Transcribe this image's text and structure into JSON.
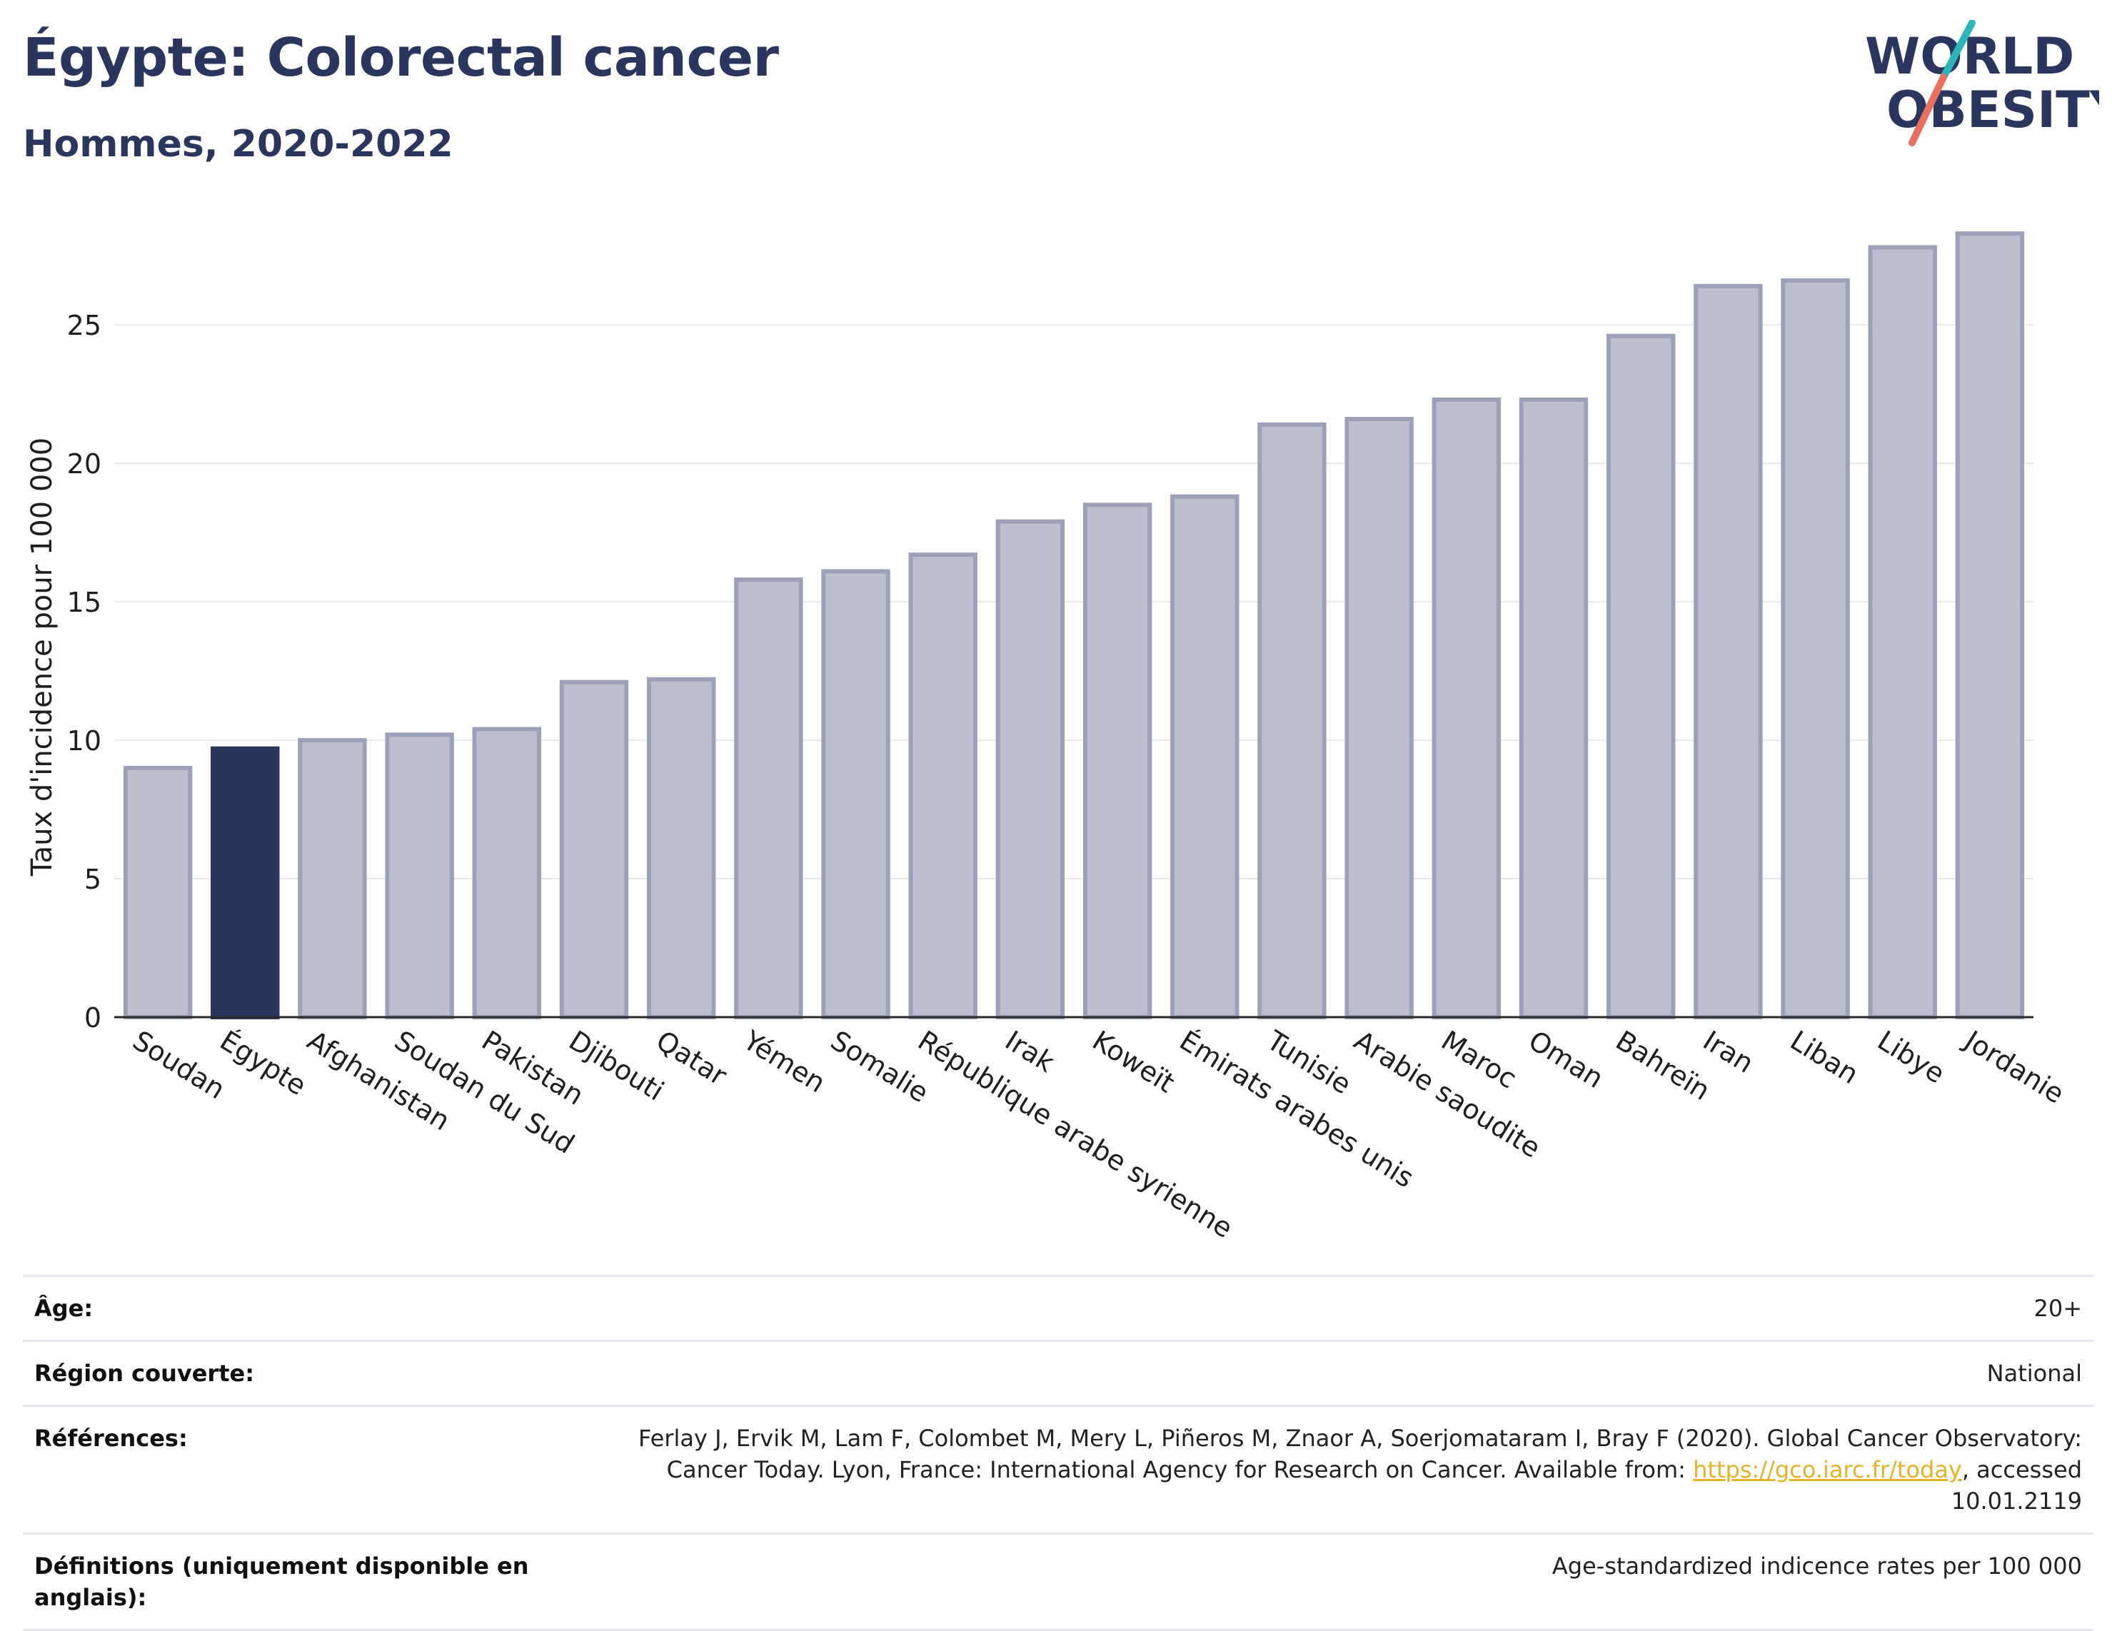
{
  "header": {
    "title": "Égypte: Colorectal cancer",
    "subtitle": "Hommes, 2020-2022"
  },
  "logo": {
    "line1": "WORLD",
    "line2": "OBESITY",
    "accent1": "#2bb5b8",
    "accent2": "#e8705f",
    "text_color": "#2b365e"
  },
  "chart_data": {
    "type": "bar",
    "title": "Égypte: Colorectal cancer",
    "subtitle": "Hommes, 2020-2022",
    "ylabel": "Taux d'incidence pour 100 000",
    "xlabel": "",
    "ylim": [
      0,
      29
    ],
    "yticks": [
      0,
      5,
      10,
      15,
      20,
      25
    ],
    "grid": true,
    "highlight": "Égypte",
    "colors": {
      "bar": "#bcc0ce",
      "bar_edge": "#9ba1b8",
      "highlight": "#2b365e"
    },
    "categories": [
      "Soudan",
      "Égypte",
      "Afghanistan",
      "Soudan du Sud",
      "Pakistan",
      "Djibouti",
      "Qatar",
      "Yémen",
      "Somalie",
      "République arabe syrienne",
      "Irak",
      "Koweït",
      "Émirats arabes unis",
      "Tunisie",
      "Arabie saoudite",
      "Maroc",
      "Oman",
      "Bahreïn",
      "Iran",
      "Liban",
      "Libye",
      "Jordanie"
    ],
    "values": [
      9.0,
      9.7,
      10.0,
      10.2,
      10.4,
      12.1,
      12.2,
      15.8,
      16.1,
      16.7,
      17.9,
      18.5,
      18.8,
      21.4,
      21.6,
      22.3,
      22.3,
      24.6,
      26.4,
      26.6,
      27.8,
      28.3
    ]
  },
  "info": {
    "age_label": "Âge:",
    "age_value": "20+",
    "region_label": "Région couverte:",
    "region_value": "National",
    "ref_label": "Références:",
    "ref_text": "Ferlay J, Ervik M, Lam F, Colombet M, Mery L, Piñeros M, Znaor A, Soerjomataram I, Bray F (2020). Global Cancer Observatory: Cancer Today. Lyon, France: International Agency for Research on Cancer. Available from: ",
    "ref_link": "https://gco.iarc.fr/today",
    "ref_after": ", accessed 10.01.2119",
    "def_label": "Définitions (uniquement disponible en anglais):",
    "def_value": "Age-standardized indicence rates per 100 000"
  }
}
